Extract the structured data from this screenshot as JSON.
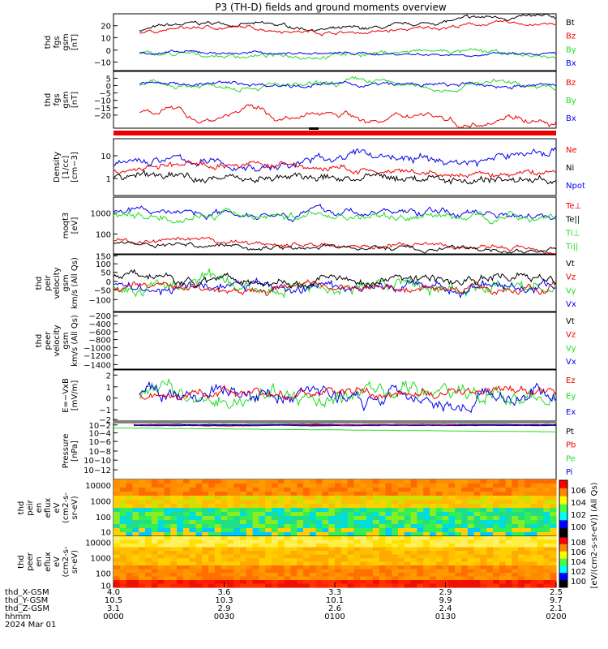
{
  "title": "P3 (TH-D) fields and ground moments overview",
  "colors": {
    "black": "#000000",
    "red": "#ee0000",
    "green": "#22dd22",
    "blue": "#0000ee"
  },
  "panels": [
    {
      "id": "fgs",
      "ylabel": [
        "thd",
        "fgs",
        "gsm",
        "[nT]"
      ],
      "ytick_labels": [
        "20",
        "10",
        "0",
        "−10"
      ],
      "legend": [
        {
          "label": "Bt",
          "color": "black"
        },
        {
          "label": "Bz",
          "color": "red"
        },
        {
          "label": "By",
          "color": "green"
        },
        {
          "label": "Bx",
          "color": "blue"
        }
      ]
    },
    {
      "id": "fgs-dsl",
      "ylabel": [
        "thd",
        "fgs",
        "gsm",
        "[nT]"
      ],
      "ytick_labels": [
        "5",
        "0",
        "−5",
        "−10",
        "−15",
        "−20"
      ],
      "legend": [
        {
          "label": "Bz",
          "color": "red"
        },
        {
          "label": "By",
          "color": "green"
        },
        {
          "label": "Bx",
          "color": "blue"
        }
      ]
    },
    {
      "id": "density",
      "ylabel": [
        "Density",
        "[1/cc]",
        "[cm−3]"
      ],
      "ytick_labels": [
        "10",
        "1"
      ],
      "legend": [
        {
          "label": "Ne",
          "color": "red"
        },
        {
          "label": "Ni",
          "color": "black"
        },
        {
          "label": "Npot",
          "color": "blue"
        }
      ]
    },
    {
      "id": "temp",
      "ylabel": [
        "moqt3",
        "[eV]"
      ],
      "ytick_labels": [
        "1000",
        "100"
      ],
      "legend": [
        {
          "label": "Te⊥",
          "color": "red"
        },
        {
          "label": "Te||",
          "color": "black"
        },
        {
          "label": "Ti⊥",
          "color": "green"
        },
        {
          "label": "Ti||",
          "color": "green"
        }
      ]
    },
    {
      "id": "vi",
      "ylabel": [
        "thd",
        "peir",
        "velocity",
        "gsm",
        "km/s (All Qs)"
      ],
      "ytick_labels": [
        "150",
        "100",
        "50",
        "0",
        "−50",
        "−100"
      ],
      "legend": [
        {
          "label": "Vt",
          "color": "black"
        },
        {
          "label": "Vz",
          "color": "red"
        },
        {
          "label": "Vy",
          "color": "green"
        },
        {
          "label": "Vx",
          "color": "blue"
        }
      ]
    },
    {
      "id": "ve",
      "ylabel": [
        "thd",
        "peer",
        "velocity",
        "gsm",
        "km/s (All Qs)"
      ],
      "ytick_labels": [
        "−200",
        "−400",
        "−600",
        "−800",
        "−1000",
        "−1200",
        "−1400"
      ],
      "legend": [
        {
          "label": "Vt",
          "color": "black"
        },
        {
          "label": "Vz",
          "color": "red"
        },
        {
          "label": "Vy",
          "color": "green"
        },
        {
          "label": "Vx",
          "color": "blue"
        }
      ]
    },
    {
      "id": "efield",
      "ylabel": [
        "E=−VxB",
        "[mV/m]"
      ],
      "ytick_labels": [
        "2",
        "1",
        "0",
        "−1",
        "−2"
      ],
      "legend": [
        {
          "label": "Ez",
          "color": "red"
        },
        {
          "label": "Ey",
          "color": "green"
        },
        {
          "label": "Ex",
          "color": "blue"
        }
      ]
    },
    {
      "id": "pressure",
      "ylabel": [
        "Pressure",
        "[nPa]"
      ],
      "ytick_labels": [
        "10−2",
        "10−4",
        "10−6",
        "10−8",
        "10−10",
        "10−12"
      ],
      "legend": [
        {
          "label": "Pt",
          "color": "black"
        },
        {
          "label": "Pb",
          "color": "red"
        },
        {
          "label": "Pe",
          "color": "green"
        },
        {
          "label": "Pi",
          "color": "blue"
        }
      ]
    },
    {
      "id": "ion-spec",
      "ylabel": [
        "thd",
        "peir",
        "en",
        "eflux",
        "eV",
        "(cm2-s-",
        "sr-eV)"
      ],
      "ytick_labels": [
        "10000",
        "1000",
        "100",
        "10"
      ]
    },
    {
      "id": "ele-spec",
      "ylabel": [
        "thd",
        "peer",
        "en",
        "eflux",
        "eV",
        "(cm2-s-",
        "sr-eV)"
      ],
      "ytick_labels": [
        "10000",
        "1000",
        "100",
        "10"
      ]
    }
  ],
  "colorbar": {
    "ion_labels": [
      "106",
      "104",
      "102",
      "100"
    ],
    "ele_labels": [
      "108",
      "106",
      "104",
      "102",
      "100"
    ],
    "title": "[eV/(cm2-s-sr-eV)] (All Qs)"
  },
  "footer": {
    "row_labels": [
      "thd_X-GSM",
      "thd_Y-GSM",
      "thd_Z-GSM",
      "hhmm",
      "2024 Mar 01"
    ],
    "columns": [
      {
        "values": [
          "4.0",
          "10.5",
          "3.1",
          "0000"
        ]
      },
      {
        "values": [
          "3.6",
          "10.3",
          "2.9",
          "0030"
        ]
      },
      {
        "values": [
          "3.3",
          "10.1",
          "2.6",
          "0100"
        ]
      },
      {
        "values": [
          "2.9",
          "9.9",
          "2.4",
          "0130"
        ]
      },
      {
        "values": [
          "2.5",
          "9.7",
          "2.1",
          "0200"
        ]
      }
    ]
  },
  "chart_data": {
    "type": "line",
    "title": "P3 (TH-D) fields and ground moments overview",
    "x_axis": {
      "units": "hhmm",
      "ticks": [
        "0000",
        "0030",
        "0100",
        "0130",
        "0200"
      ],
      "date": "2024 Mar 01"
    },
    "series": [
      {
        "name": "Bt",
        "unit": "nT",
        "approx_range": [
          14,
          28
        ]
      },
      {
        "name": "Bz",
        "unit": "nT",
        "approx_range": [
          10,
          25
        ]
      },
      {
        "name": "By",
        "unit": "nT",
        "approx_range": [
          -15,
          0
        ]
      },
      {
        "name": "Bx",
        "unit": "nT",
        "approx_range": [
          -10,
          0
        ]
      },
      {
        "name": "Ne",
        "unit": "cm−3",
        "approx_range": [
          0.5,
          5
        ]
      },
      {
        "name": "Ni",
        "unit": "cm−3",
        "approx_range": [
          0.2,
          3
        ]
      },
      {
        "name": "Npot",
        "unit": "cm−3",
        "approx_range": [
          0.7,
          40
        ]
      },
      {
        "name": "Vt",
        "unit": "km/s",
        "approx_range": [
          0,
          100
        ]
      },
      {
        "name": "Ez",
        "unit": "mV/m",
        "approx_range": [
          -1,
          1
        ]
      }
    ]
  }
}
